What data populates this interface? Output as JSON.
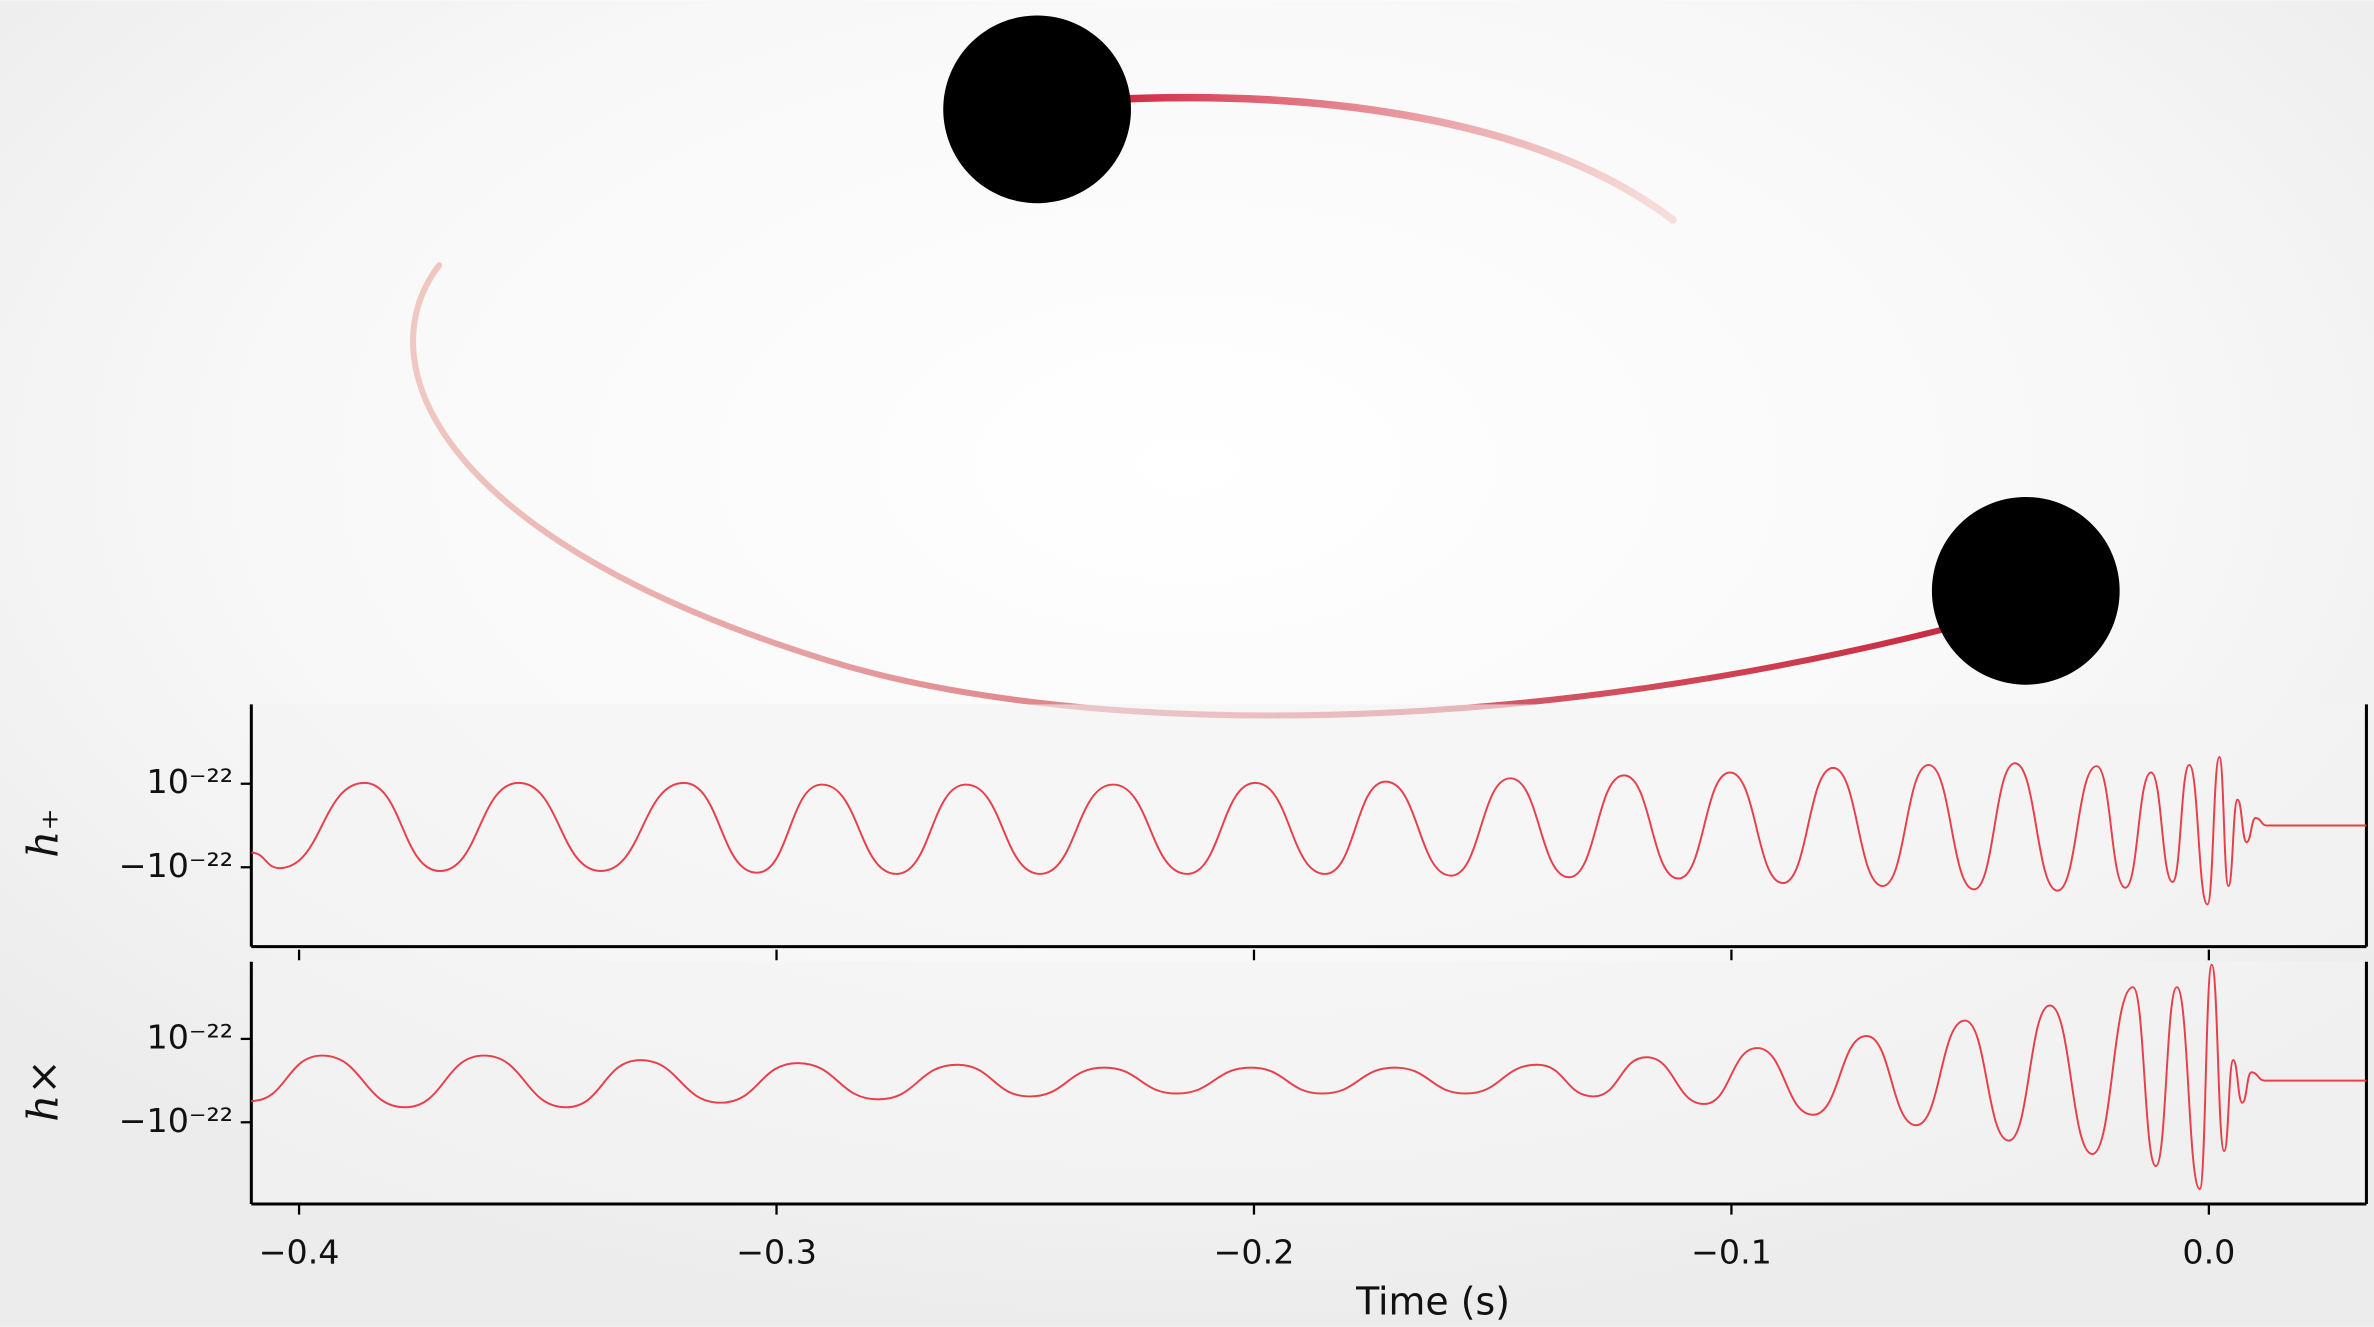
{
  "chart_data": [
    {
      "type": "line",
      "ylabel": "h₊",
      "color": "#e8404a",
      "x": [
        -0.41,
        -0.4041,
        -0.3863,
        -0.3705,
        -0.354,
        -0.3368,
        -0.3194,
        -0.3041,
        -0.2905,
        -0.2749,
        -0.2603,
        -0.2448,
        -0.2295,
        -0.214,
        -0.1997,
        -0.1851,
        -0.1724,
        -0.1587,
        -0.1463,
        -0.134,
        -0.1225,
        -0.1111,
        -0.1003,
        -0.0892,
        -0.0787,
        -0.0683,
        -0.0587,
        -0.0492,
        -0.0406,
        -0.0317,
        -0.0235,
        -0.0175,
        -0.0121,
        -0.0076,
        -0.0041,
        -0.0003,
        0.0022,
        0.0041,
        0.006,
        0.0079,
        0.0098,
        0.0121,
        0.033
      ],
      "values": [
        -6.5e-23,
        -1.02e-22,
        1.02e-22,
        -1.09e-22,
        1.02e-22,
        -1.09e-22,
        1.02e-22,
        -1.13e-22,
        9.8e-23,
        -1.16e-22,
        9.8e-23,
        -1.16e-22,
        9.8e-23,
        -1.16e-22,
        1.02e-22,
        -1.16e-22,
        1.05e-22,
        -1.2e-22,
        1.13e-22,
        -1.24e-22,
        1.2e-22,
        -1.27e-22,
        1.27e-22,
        -1.38e-22,
        1.38e-22,
        -1.45e-22,
        1.45e-22,
        -1.53e-22,
        1.49e-22,
        -1.56e-22,
        1.42e-22,
        -1.49e-22,
        1.27e-22,
        -1.35e-22,
        1.45e-22,
        -1.89e-22,
        1.64e-22,
        -1.45e-22,
        6.2e-23,
        -4e-23,
        1.8e-23,
        0,
        0
      ],
      "xlim": [
        -0.41,
        0.033
      ],
      "ylim": [
        -2.9e-22,
        2.9e-22
      ],
      "yticks": [
        {
          "value": 1e-22,
          "label": "10⁻²²"
        },
        {
          "value": -1e-22,
          "label": "−10⁻²²"
        }
      ]
    },
    {
      "type": "line",
      "ylabel": "h×",
      "xlabel": "Time (s)",
      "color": "#e8404a",
      "x": [
        -0.41,
        -0.3952,
        -0.3778,
        -0.3613,
        -0.3441,
        -0.3286,
        -0.3117,
        -0.2956,
        -0.2787,
        -0.2622,
        -0.247,
        -0.2314,
        -0.2162,
        -0.2006,
        -0.1857,
        -0.1705,
        -0.1556,
        -0.1406,
        -0.1289,
        -0.1178,
        -0.1057,
        -0.0946,
        -0.0829,
        -0.0717,
        -0.0613,
        -0.0511,
        -0.0419,
        -0.0333,
        -0.0244,
        -0.0159,
        -0.0111,
        -0.0067,
        -0.0019,
        0.0006,
        0.0032,
        0.0051,
        0.007,
        0.0089,
        0.0117,
        0.033
      ],
      "values": [
        -4.9e-23,
        6e-23,
        -6.4e-23,
        6e-23,
        -6.4e-23,
        4.9e-23,
        -5.3e-23,
        4.2e-23,
        -4.5e-23,
        3.8e-23,
        -3.8e-23,
        3.1e-23,
        -3.1e-23,
        3.1e-23,
        -3.1e-23,
        3.1e-23,
        -3.1e-23,
        3.8e-23,
        -3.8e-23,
        5.6e-23,
        -5.6e-23,
        7.8e-23,
        -8.2e-23,
        1.07e-22,
        -1.07e-22,
        1.44e-22,
        -1.44e-22,
        1.8e-22,
        -1.76e-22,
        2.24e-22,
        -2.05e-22,
        2.24e-22,
        -2.6e-22,
        2.78e-22,
        -1.69e-22,
        4.9e-23,
        -5.3e-23,
        2e-23,
        0,
        0
      ],
      "xlim": [
        -0.41,
        0.033
      ],
      "ylim": [
        -2.96e-22,
        2.85e-22
      ],
      "yticks": [
        {
          "value": 1e-22,
          "label": "10⁻²²"
        },
        {
          "value": -1e-22,
          "label": "−10⁻²²"
        }
      ],
      "xticks": [
        {
          "value": -0.4,
          "label": "−0.4"
        },
        {
          "value": -0.3,
          "label": "−0.3"
        },
        {
          "value": -0.2,
          "label": "−0.2"
        },
        {
          "value": -0.1,
          "label": "−0.1"
        },
        {
          "value": 0,
          "label": "0.0"
        }
      ]
    }
  ]
}
